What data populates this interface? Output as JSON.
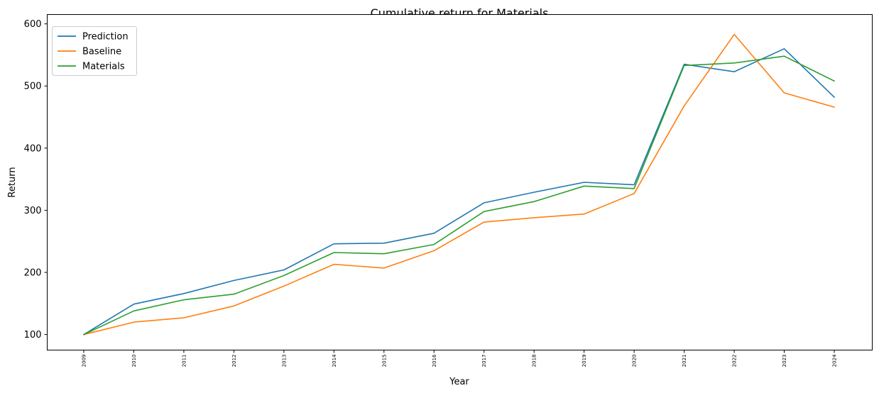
{
  "chart_data": {
    "type": "line",
    "title": "Cumulative return for Materials",
    "xlabel": "Year",
    "ylabel": "Return",
    "categories": [
      "2009",
      "2010",
      "2011",
      "2012",
      "2013",
      "2014",
      "2015",
      "2016",
      "2017",
      "2018",
      "2019",
      "2020",
      "2021",
      "2022",
      "2023",
      "2024"
    ],
    "ylim": [
      75,
      615
    ],
    "yticks": [
      100,
      200,
      300,
      400,
      500,
      600
    ],
    "grid": false,
    "legend_position": "top-left",
    "series": [
      {
        "name": "Prediction",
        "color": "#1f77b4",
        "values": [
          100,
          149,
          166,
          187,
          204,
          246,
          247,
          263,
          312,
          329,
          345,
          341,
          535,
          523,
          560,
          482
        ]
      },
      {
        "name": "Baseline",
        "color": "#ff7f0e",
        "values": [
          100,
          120,
          127,
          146,
          178,
          213,
          207,
          235,
          281,
          288,
          294,
          327,
          468,
          583,
          489,
          466
        ]
      },
      {
        "name": "Materials",
        "color": "#2ca02c",
        "values": [
          100,
          138,
          156,
          165,
          195,
          232,
          230,
          245,
          298,
          314,
          339,
          335,
          533,
          537,
          548,
          508
        ]
      }
    ]
  }
}
